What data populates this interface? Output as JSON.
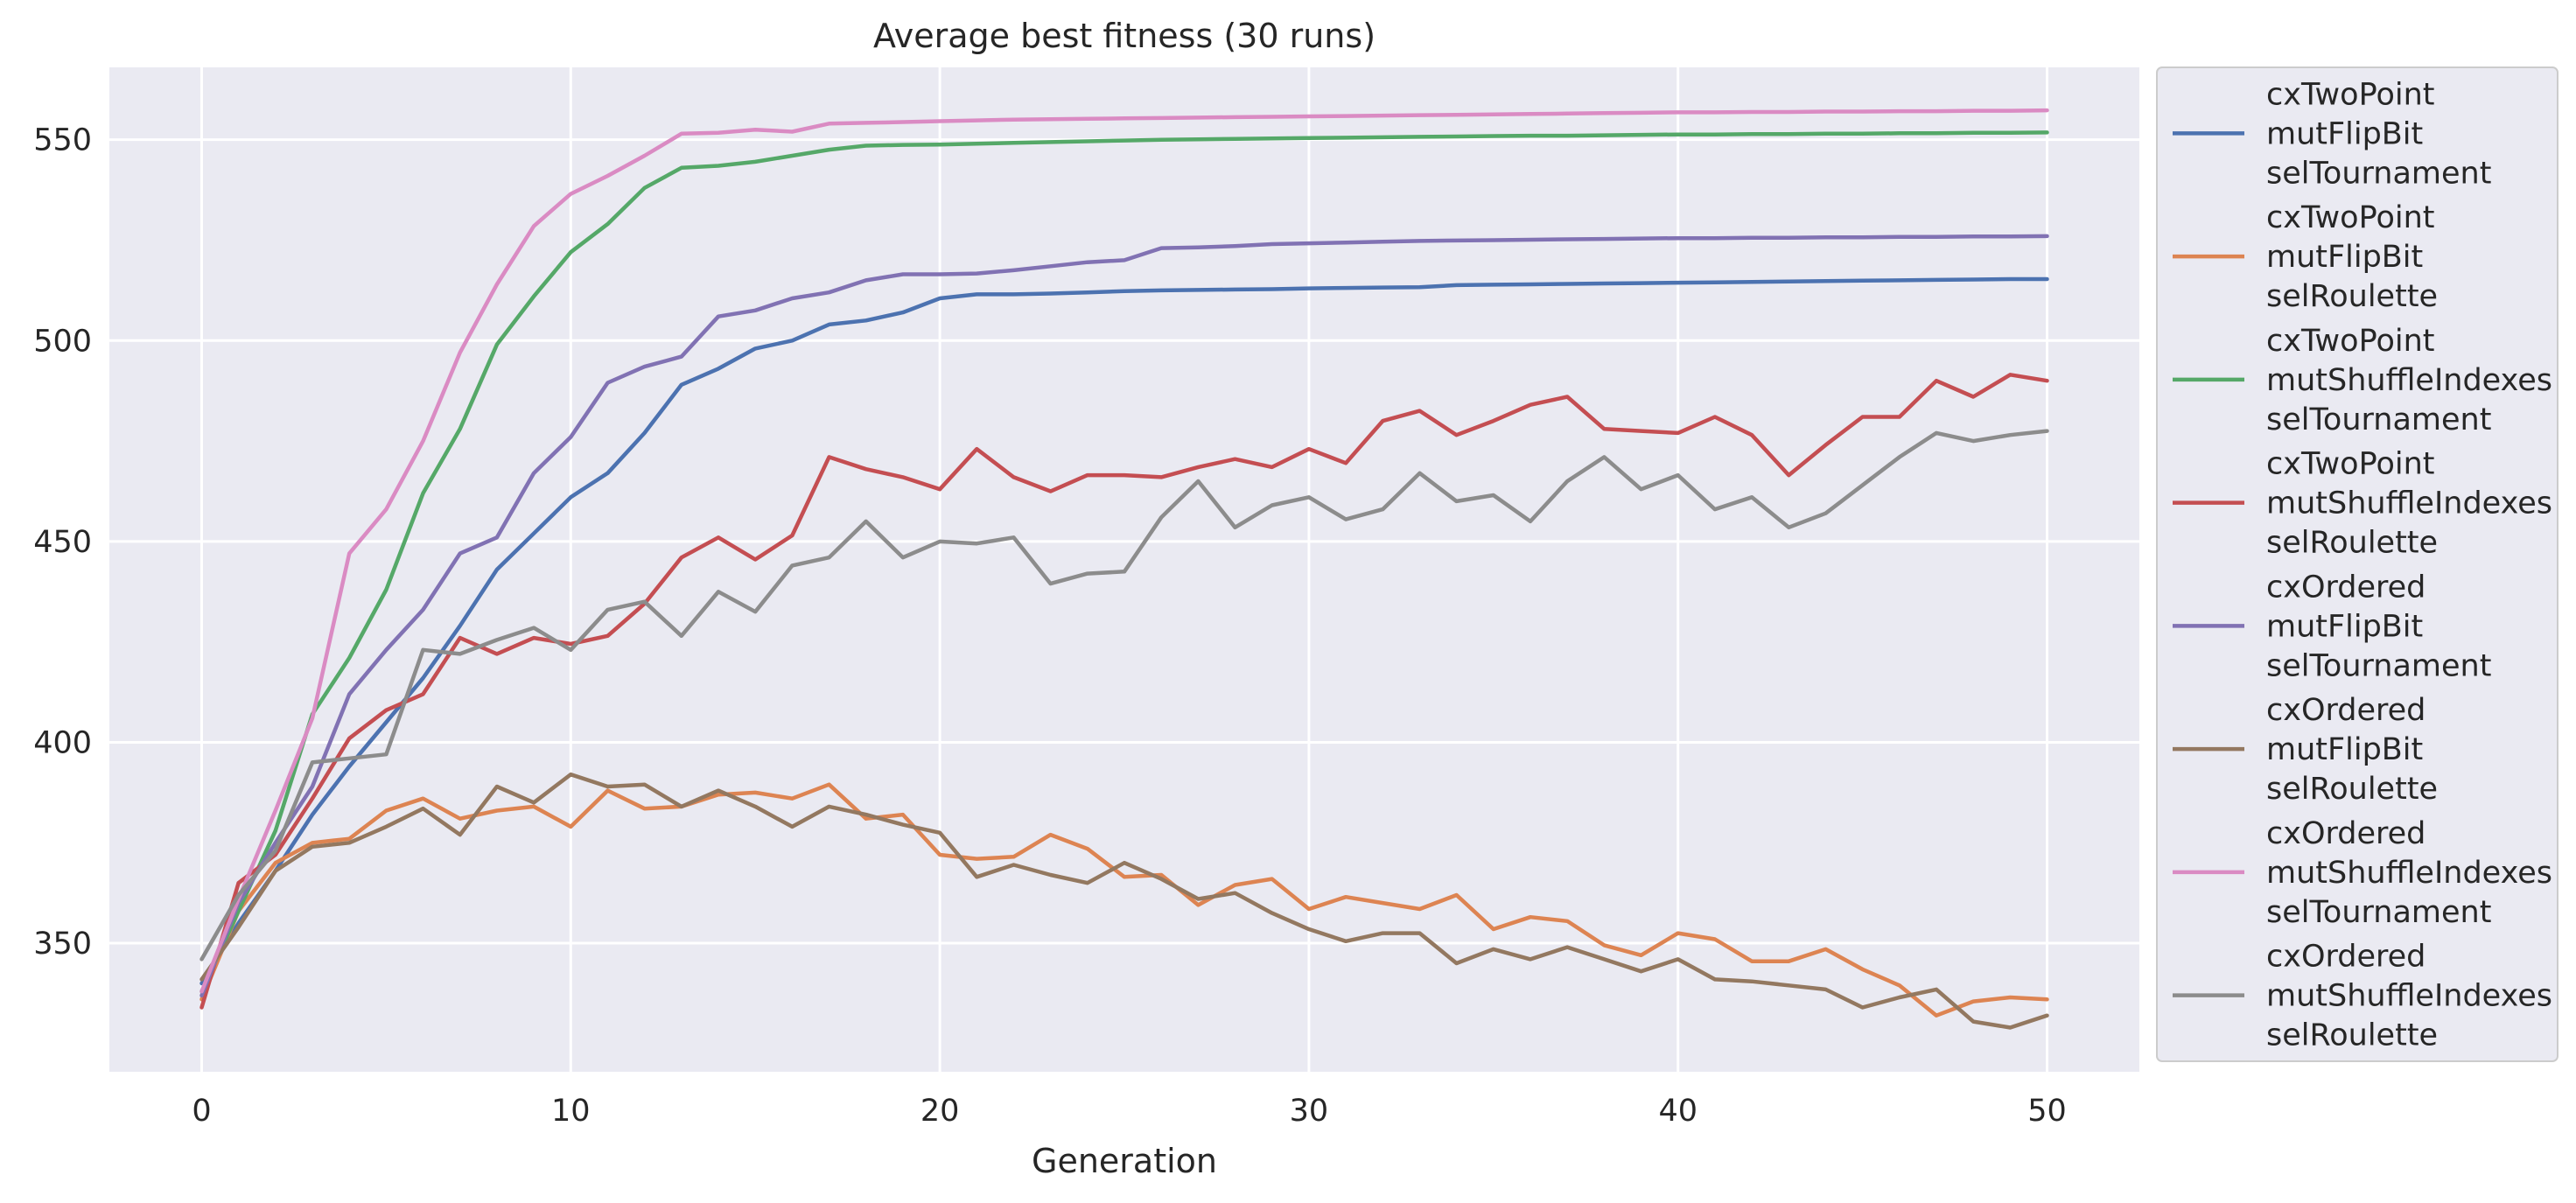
{
  "chart_data": {
    "type": "line",
    "title": "Average best fitness (30 runs)",
    "xlabel": "Generation",
    "ylabel": "",
    "xlim": [
      -2.5,
      52.5
    ],
    "ylim": [
      318,
      568
    ],
    "xticks": [
      0,
      10,
      20,
      30,
      40,
      50
    ],
    "yticks": [
      350,
      400,
      450,
      500,
      550
    ],
    "grid": true,
    "legend_position": "outside-right",
    "series": [
      {
        "name": "cxTwoPoint\nmutFlipBit\nselTournament",
        "color": "#4c72b0",
        "values": [
          340.0,
          355.0,
          368.0,
          382.0,
          394.0,
          405.0,
          416.0,
          429.0,
          443.0,
          452.0,
          461.0,
          467.0,
          477.0,
          489.0,
          493.0,
          498.0,
          500.0,
          504.0,
          505.0,
          507.0,
          510.5,
          511.5,
          511.5,
          511.7,
          512.0,
          512.3,
          512.5,
          512.6,
          512.7,
          512.8,
          513.0,
          513.1,
          513.2,
          513.3,
          513.8,
          513.9,
          514.0,
          514.1,
          514.2,
          514.3,
          514.4,
          514.5,
          514.6,
          514.7,
          514.8,
          514.9,
          515.0,
          515.1,
          515.2,
          515.3,
          515.3
        ]
      },
      {
        "name": "cxTwoPoint\nmutFlipBit\nselRoulette",
        "color": "#dd8452",
        "values": [
          336.0,
          358.0,
          370.0,
          375.0,
          376.0,
          383.0,
          386.0,
          381.0,
          383.0,
          384.0,
          379.0,
          388.0,
          383.5,
          384.0,
          387.0,
          387.5,
          386.0,
          389.5,
          381.0,
          382.0,
          372.0,
          371.0,
          371.5,
          377.0,
          373.5,
          366.5,
          367.0,
          359.5,
          364.5,
          366.0,
          358.5,
          361.5,
          360.0,
          358.5,
          362.0,
          353.5,
          356.5,
          355.5,
          349.5,
          347.0,
          352.5,
          351.0,
          345.5,
          345.5,
          348.5,
          343.5,
          339.5,
          332.0,
          335.5,
          336.5,
          336.0
        ]
      },
      {
        "name": "cxTwoPoint\nmutShuffleIndexes\nselTournament",
        "color": "#55a868",
        "values": [
          338.0,
          358.0,
          378.0,
          407.0,
          421.0,
          438.0,
          462.0,
          478.0,
          499.0,
          511.0,
          522.0,
          529.0,
          538.0,
          543.0,
          543.5,
          544.5,
          546.0,
          547.5,
          548.5,
          548.7,
          548.8,
          549.0,
          549.2,
          549.4,
          549.6,
          549.8,
          550.0,
          550.1,
          550.2,
          550.3,
          550.4,
          550.5,
          550.6,
          550.7,
          550.8,
          550.9,
          551.0,
          551.0,
          551.1,
          551.2,
          551.3,
          551.3,
          551.4,
          551.4,
          551.5,
          551.5,
          551.6,
          551.6,
          551.7,
          551.7,
          551.8
        ]
      },
      {
        "name": "cxTwoPoint\nmutShuffleIndexes\nselRoulette",
        "color": "#c44e52",
        "values": [
          334.0,
          365.0,
          372.0,
          386.0,
          401.0,
          408.0,
          412.0,
          426.0,
          422.0,
          426.0,
          424.5,
          426.5,
          434.5,
          446.0,
          451.0,
          445.5,
          451.5,
          471.0,
          468.0,
          466.0,
          463.0,
          473.0,
          466.0,
          462.5,
          466.5,
          466.5,
          466.0,
          468.5,
          470.5,
          468.5,
          473.0,
          469.5,
          480.0,
          482.5,
          476.5,
          480.0,
          484.0,
          486.0,
          478.0,
          477.5,
          477.0,
          481.0,
          476.5,
          466.5,
          474.0,
          481.0,
          481.0,
          490.0,
          486.0,
          491.5,
          490.0
        ]
      },
      {
        "name": "cxOrdered\nmutFlipBit\nselTournament",
        "color": "#8172b3",
        "values": [
          337.0,
          360.0,
          375.0,
          389.0,
          412.0,
          423.0,
          433.0,
          447.0,
          451.0,
          467.0,
          476.0,
          489.5,
          493.5,
          496.0,
          506.0,
          507.5,
          510.5,
          512.0,
          515.0,
          516.5,
          516.5,
          516.7,
          517.5,
          518.5,
          519.5,
          520.0,
          523.0,
          523.2,
          523.5,
          524.0,
          524.2,
          524.4,
          524.6,
          524.8,
          524.9,
          525.0,
          525.1,
          525.2,
          525.3,
          525.4,
          525.5,
          525.5,
          525.6,
          525.6,
          525.7,
          525.7,
          525.8,
          525.8,
          525.9,
          525.9,
          526.0
        ]
      },
      {
        "name": "cxOrdered\nmutFlipBit\nselRoulette",
        "color": "#937860",
        "values": [
          341.0,
          354.0,
          368.0,
          374.0,
          375.0,
          379.0,
          383.5,
          377.0,
          389.0,
          385.0,
          392.0,
          389.0,
          389.5,
          384.0,
          388.0,
          384.0,
          379.0,
          384.0,
          382.0,
          379.5,
          377.5,
          366.5,
          369.5,
          367.0,
          365.0,
          370.0,
          366.0,
          361.0,
          362.5,
          357.5,
          353.5,
          350.5,
          352.5,
          352.5,
          345.0,
          348.5,
          346.0,
          349.0,
          346.0,
          343.0,
          346.0,
          341.0,
          340.5,
          339.5,
          338.5,
          334.0,
          336.5,
          338.5,
          330.5,
          329.0,
          332.0
        ]
      },
      {
        "name": "cxOrdered\nmutShuffleIndexes\nselTournament",
        "color": "#da8bc3",
        "values": [
          338.0,
          361.0,
          383.0,
          406.0,
          447.0,
          458.0,
          475.0,
          497.0,
          514.0,
          528.5,
          536.5,
          541.0,
          546.0,
          551.5,
          551.7,
          552.5,
          552.0,
          554.0,
          554.2,
          554.4,
          554.6,
          554.8,
          555.0,
          555.1,
          555.2,
          555.3,
          555.4,
          555.5,
          555.6,
          555.7,
          555.8,
          555.9,
          556.0,
          556.1,
          556.2,
          556.3,
          556.4,
          556.5,
          556.6,
          556.7,
          556.8,
          556.8,
          556.9,
          556.9,
          557.0,
          557.0,
          557.1,
          557.1,
          557.2,
          557.2,
          557.3
        ]
      },
      {
        "name": "cxOrdered\nmutShuffleIndexes\nselRoulette",
        "color": "#8c8c8c",
        "values": [
          346.0,
          362.0,
          373.0,
          395.0,
          396.0,
          397.0,
          423.0,
          422.0,
          425.5,
          428.5,
          423.0,
          433.0,
          435.0,
          426.5,
          437.5,
          432.5,
          444.0,
          446.0,
          455.0,
          446.0,
          450.0,
          449.5,
          451.0,
          439.5,
          442.0,
          442.5,
          456.0,
          465.0,
          453.5,
          459.0,
          461.0,
          455.5,
          458.0,
          467.0,
          460.0,
          461.5,
          455.0,
          465.0,
          471.0,
          463.0,
          466.5,
          458.0,
          461.0,
          453.5,
          457.0,
          464.0,
          471.0,
          477.0,
          475.0,
          476.5,
          477.5
        ]
      }
    ]
  }
}
